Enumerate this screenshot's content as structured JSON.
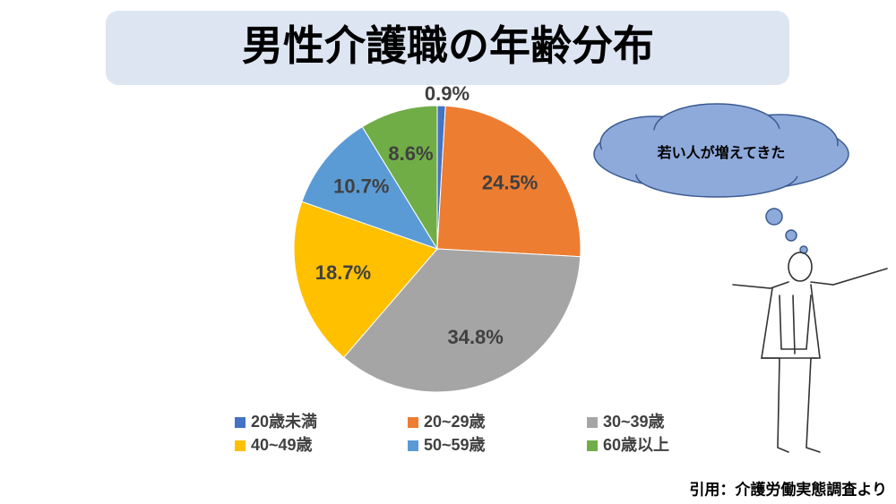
{
  "chart_data": {
    "type": "pie",
    "title": "男性介護職の年齢分布",
    "categories": [
      "20歳未満",
      "20~29歳",
      "30~39歳",
      "40~49歳",
      "50~59歳",
      "60歳以上"
    ],
    "values": [
      0.9,
      24.5,
      34.8,
      18.7,
      10.7,
      8.6
    ],
    "value_labels": [
      "0.9%",
      "24.5%",
      "34.8%",
      "18.7%",
      "10.7%",
      "8.6%"
    ],
    "colors": [
      "#4472c4",
      "#ed7d31",
      "#a5a5a5",
      "#ffc000",
      "#5b9bd5",
      "#70ad47"
    ],
    "legend": "bottom",
    "annotations": [
      "若い人が増えてきた",
      "引用：介護労働実態調査より"
    ]
  }
}
